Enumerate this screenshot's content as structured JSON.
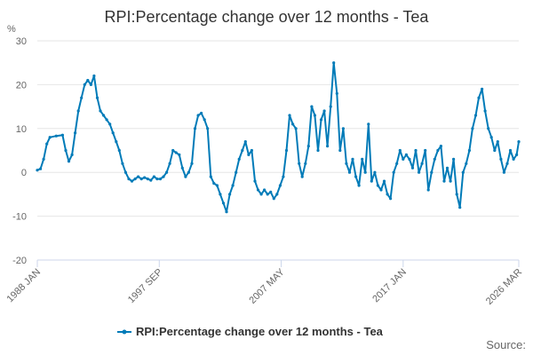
{
  "chart_data": {
    "type": "line",
    "title": "RPI:Percentage change over 12 months - Tea",
    "y_unit_label": "%",
    "ylim": [
      -20,
      30
    ],
    "y_ticks": [
      30,
      20,
      10,
      0,
      -10,
      -20
    ],
    "x_tick_labels": [
      "1988 JAN",
      "1997 SEP",
      "2007 MAY",
      "2017 JAN",
      "2026 MAR"
    ],
    "x_tick_dates": [
      1988.0,
      1997.667,
      2007.333,
      2017.0,
      2026.167
    ],
    "xlim": [
      1988.0,
      2026.167
    ],
    "legend_position": "bottom",
    "source_label": "Source:",
    "series": [
      {
        "name": "RPI:Percentage change over 12 months - Tea",
        "color": "#007bb8",
        "x": [
          1988.0,
          1988.25,
          1988.5,
          1988.75,
          1989.0,
          1989.5,
          1990.0,
          1990.25,
          1990.5,
          1990.75,
          1991.0,
          1991.25,
          1991.5,
          1991.75,
          1992.0,
          1992.25,
          1992.5,
          1992.75,
          1993.0,
          1993.25,
          1993.5,
          1993.75,
          1994.0,
          1994.25,
          1994.5,
          1994.75,
          1995.0,
          1995.25,
          1995.5,
          1995.75,
          1996.0,
          1996.25,
          1996.5,
          1996.75,
          1997.0,
          1997.25,
          1997.5,
          1997.75,
          1998.0,
          1998.25,
          1998.5,
          1998.75,
          1999.0,
          1999.25,
          1999.5,
          1999.75,
          2000.0,
          2000.25,
          2000.5,
          2000.75,
          2001.0,
          2001.25,
          2001.5,
          2001.75,
          2002.0,
          2002.25,
          2002.5,
          2002.75,
          2003.0,
          2003.25,
          2003.5,
          2003.75,
          2004.0,
          2004.25,
          2004.5,
          2004.75,
          2005.0,
          2005.25,
          2005.5,
          2005.75,
          2006.0,
          2006.25,
          2006.5,
          2006.75,
          2007.0,
          2007.25,
          2007.5,
          2007.75,
          2008.0,
          2008.25,
          2008.5,
          2008.75,
          2009.0,
          2009.25,
          2009.5,
          2009.75,
          2010.0,
          2010.25,
          2010.5,
          2010.75,
          2011.0,
          2011.25,
          2011.5,
          2011.75,
          2012.0,
          2012.25,
          2012.5,
          2012.75,
          2013.0,
          2013.25,
          2013.5,
          2013.75,
          2014.0,
          2014.25,
          2014.5,
          2014.75,
          2015.0,
          2015.25,
          2015.5,
          2015.75,
          2016.0,
          2016.25,
          2016.5,
          2016.75,
          2017.0,
          2017.25,
          2017.5,
          2017.75,
          2018.0,
          2018.25,
          2018.5,
          2018.75,
          2019.0,
          2019.25,
          2019.5,
          2019.75,
          2020.0,
          2020.25,
          2020.5,
          2020.75,
          2021.0,
          2021.25,
          2021.5,
          2021.75,
          2022.0,
          2022.25,
          2022.5,
          2022.75,
          2023.0,
          2023.25,
          2023.5,
          2023.75,
          2024.0,
          2024.25,
          2024.5,
          2024.75,
          2025.0,
          2025.25,
          2025.5,
          2025.75,
          2026.0,
          2026.167
        ],
        "values": [
          0.5,
          0.8,
          3,
          6.5,
          8,
          8.3,
          8.5,
          5,
          2.5,
          4,
          9,
          14,
          17,
          20,
          21,
          20,
          22,
          17,
          14,
          13,
          12,
          11,
          9,
          7,
          5,
          2,
          0,
          -1.5,
          -2,
          -1.5,
          -1,
          -1.5,
          -1.2,
          -1.5,
          -1.8,
          -1,
          -1.5,
          -1.5,
          -1,
          0,
          2,
          5,
          4.5,
          4,
          1,
          -1,
          0,
          2,
          10,
          13,
          13.5,
          12,
          10,
          -1,
          -2.5,
          -3,
          -5,
          -7,
          -9,
          -5,
          -3,
          0,
          3,
          5,
          7,
          4,
          5,
          -2,
          -4,
          -5,
          -4,
          -5,
          -4.5,
          -6,
          -5,
          -3,
          -1,
          5,
          13,
          11,
          10,
          2,
          -1,
          2,
          6,
          15,
          13,
          5,
          12,
          14,
          6,
          15,
          25,
          18,
          5,
          10,
          2,
          0,
          3,
          -1,
          -3,
          3,
          0,
          11,
          -2,
          0,
          -3,
          -4,
          -2,
          -5,
          -6,
          0,
          2,
          5,
          3,
          4,
          3,
          1,
          5,
          0,
          2,
          5,
          -4,
          0,
          3,
          5,
          6,
          -2,
          1,
          -2,
          3,
          -5,
          -8,
          0,
          2,
          5,
          10,
          13,
          17,
          19,
          14,
          10,
          8,
          5,
          7,
          3,
          0,
          2,
          5,
          3,
          4,
          7
        ]
      }
    ]
  }
}
